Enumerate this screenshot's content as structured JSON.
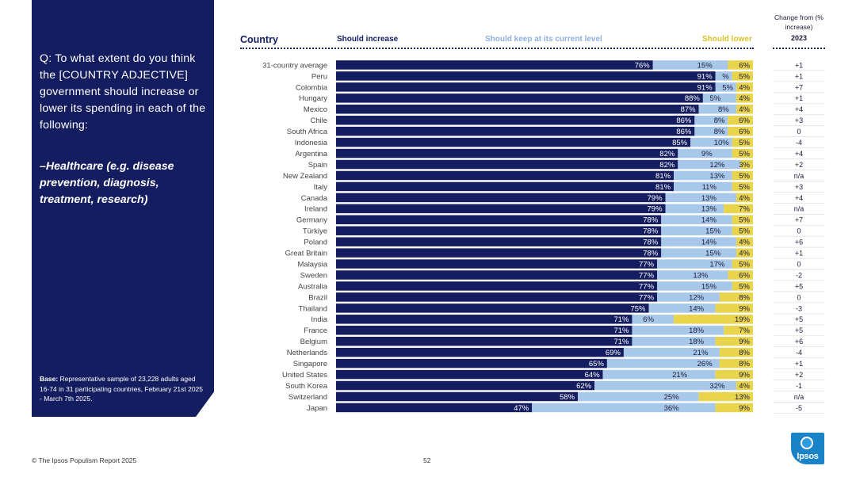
{
  "panel": {
    "question": "Q: To what extent do you think the [COUNTRY ADJECTIVE] government should increase or lower its spending in each of the following:",
    "topic": "–Healthcare (e.g. disease prevention, diagnosis, treatment, research)",
    "base_label": "Base:",
    "base_text": "Representative sample of 23,228 adults aged 16-74 in 31 participating countries, February 21st 2025 - March 7th 2025."
  },
  "headers": {
    "country": "Country",
    "increase": "Should increase",
    "keep": "Should keep at its current level",
    "lower": "Should lower",
    "change": "Change from (% increase)",
    "year": "2023"
  },
  "colors": {
    "increase": "#141d5f",
    "keep": "#a8c8ea",
    "lower": "#e8d44d",
    "panel": "#141d5f"
  },
  "chart_data": {
    "type": "bar",
    "stacked": true,
    "orientation": "horizontal",
    "categories": [
      "31-country average",
      "Peru",
      "Colombia",
      "Hungary",
      "Mexico",
      "Chile",
      "South Africa",
      "Indonesia",
      "Argentina",
      "Spain",
      "New Zealand",
      "Italy",
      "Canada",
      "Ireland",
      "Germany",
      "Türkiye",
      "Poland",
      "Great Britain",
      "Malaysia",
      "Sweden",
      "Australia",
      "Brazil",
      "Thailand",
      "India",
      "France",
      "Belgium",
      "Netherlands",
      "Singapore",
      "United States",
      "South Korea",
      "Switzerland",
      "Japan"
    ],
    "series": [
      {
        "name": "Should increase",
        "values": [
          76,
          91,
          91,
          88,
          87,
          86,
          86,
          85,
          82,
          82,
          81,
          81,
          79,
          79,
          78,
          78,
          78,
          78,
          77,
          77,
          77,
          77,
          75,
          71,
          71,
          71,
          69,
          65,
          64,
          62,
          58,
          47
        ]
      },
      {
        "name": "Should keep at its current level",
        "values": [
          15,
          4,
          5,
          5,
          8,
          8,
          8,
          10,
          9,
          12,
          13,
          11,
          13,
          13,
          14,
          15,
          14,
          15,
          17,
          13,
          15,
          12,
          14,
          6,
          18,
          18,
          21,
          26,
          21,
          32,
          25,
          36
        ]
      },
      {
        "name": "Should lower",
        "values": [
          6,
          5,
          4,
          4,
          4,
          6,
          6,
          5,
          5,
          3,
          5,
          5,
          4,
          7,
          5,
          5,
          4,
          4,
          5,
          6,
          5,
          8,
          9,
          19,
          7,
          9,
          8,
          8,
          9,
          4,
          13,
          9
        ]
      }
    ],
    "labels_increase": [
      "76%",
      "91%",
      "91%",
      "88%",
      "87%",
      "86%",
      "86%",
      "85%",
      "82%",
      "82%",
      "81%",
      "81%",
      "79%",
      "79%",
      "78%",
      "78%",
      "78%",
      "78%",
      "77%",
      "77%",
      "77%",
      "77%",
      "75%",
      "71%",
      "71%",
      "71%",
      "69%",
      "65%",
      "64%",
      "62%",
      "58%",
      "47%"
    ],
    "labels_keep": [
      "15%",
      "%",
      "5%",
      "5%",
      "8%",
      "8%",
      "8%",
      "10%",
      "9%",
      "12%",
      "13%",
      "11%",
      "13%",
      "13%",
      "14%",
      "15%",
      "14%",
      "15%",
      "17%",
      "13%",
      "15%",
      "12%",
      "14%",
      "6%",
      "18%",
      "18%",
      "21%",
      "26%",
      "21%",
      "32%",
      "25%",
      "36%"
    ],
    "labels_lower": [
      "6%",
      "5%",
      "4%",
      "4%",
      "4%",
      "6%",
      "6%",
      "5%",
      "5%",
      "3%",
      "5%",
      "5%",
      "4%",
      "7%",
      "5%",
      "5%",
      "4%",
      "4%",
      "5%",
      "6%",
      "5%",
      "8%",
      "9%",
      "19%",
      "7%",
      "9%",
      "8%",
      "8%",
      "9%",
      "4%",
      "13%",
      "9%"
    ],
    "change_2023": [
      "+1",
      "+1",
      "+7",
      "+1",
      "+4",
      "+3",
      "0",
      "-4",
      "+4",
      "+2",
      "n/a",
      "+3",
      "+4",
      "n/a",
      "+7",
      "0",
      "+6",
      "+1",
      "0",
      "-2",
      "+5",
      "0",
      "-3",
      "+5",
      "+5",
      "+6",
      "-4",
      "+1",
      "+2",
      "-1",
      "n/a",
      "-5"
    ]
  },
  "footer": {
    "source": "© The Ipsos Populism Report 2025",
    "page": "52"
  },
  "logo": {
    "text": "Ipsos",
    "icon": "ipsos-logo-icon"
  }
}
